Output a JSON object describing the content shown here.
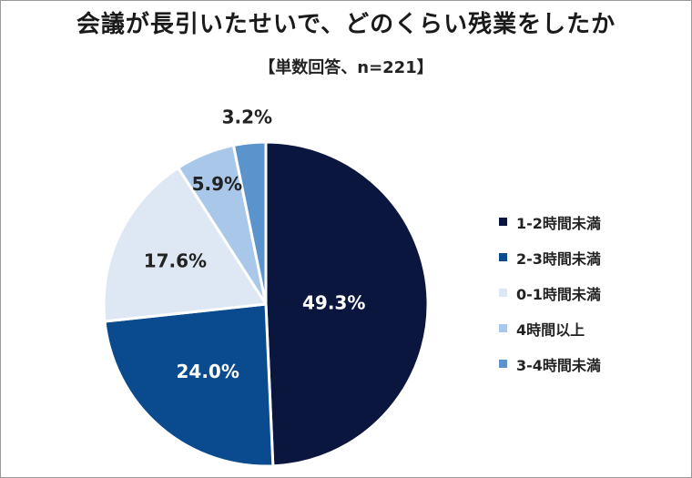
{
  "title": "会議が長引いたせいで、どのくらい残業をしたか",
  "subtitle": "【単数回答、n=221】",
  "chart_data": {
    "type": "pie",
    "title": "会議が長引いたせいで、どのくらい残業をしたか",
    "subtitle": "【単数回答、n=221】",
    "start": "12 o'clock, clockwise",
    "legend_position": "right",
    "slices": [
      {
        "label": "1-2時間未満",
        "value": 49.3,
        "display": "49.3%",
        "color": "#0b163f",
        "label_color": "#ffffff"
      },
      {
        "label": "2-3時間未満",
        "value": 24.0,
        "display": "24.0%",
        "color": "#0a4a8f",
        "label_color": "#ffffff"
      },
      {
        "label": "0-1時間未満",
        "value": 17.6,
        "display": "17.6%",
        "color": "#dde8f4",
        "label_color": "#222222"
      },
      {
        "label": "4時間以上",
        "value": 5.9,
        "display": "5.9%",
        "color": "#a9c7e8",
        "label_color": "#222222"
      },
      {
        "label": "3-4時間未満",
        "value": 3.2,
        "display": "3.2%",
        "color": "#5b93cc",
        "label_color": "#222222"
      }
    ]
  }
}
